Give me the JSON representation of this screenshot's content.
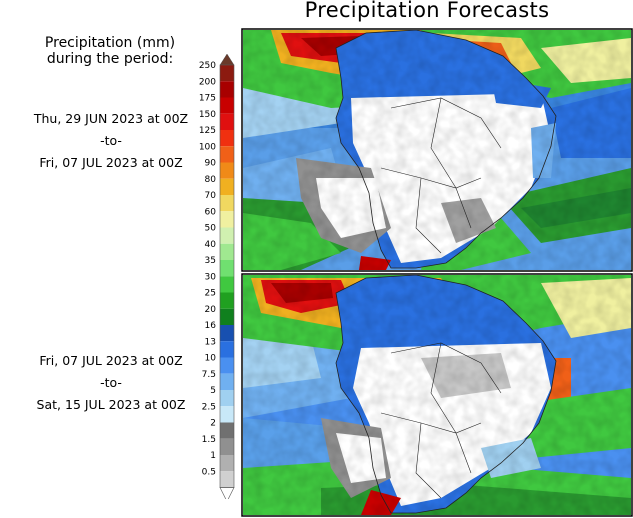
{
  "title": "Precipitation Forecasts",
  "legend": {
    "heading_line1": "Precipitation (mm)",
    "heading_line2": "during the period:",
    "ticks": [
      "250",
      "200",
      "175",
      "150",
      "125",
      "100",
      "90",
      "80",
      "70",
      "60",
      "50",
      "40",
      "35",
      "30",
      "25",
      "20",
      "16",
      "13",
      "10",
      "7.5",
      "5",
      "2.5",
      "2",
      "1.5",
      "1",
      "0.5"
    ],
    "colors": [
      "#6a3a2a",
      "#8c1a10",
      "#a80000",
      "#c80000",
      "#e01010",
      "#f03010",
      "#f06018",
      "#f08a18",
      "#f0b020",
      "#f0d860",
      "#f0f0a0",
      "#d0f0b0",
      "#a0e890",
      "#70e070",
      "#40c840",
      "#20a020",
      "#10801e",
      "#1850b0",
      "#2a70e0",
      "#4a90f0",
      "#70b0f0",
      "#a0d0f0",
      "#c8e8f8",
      "#707070",
      "#909090",
      "#b0b0b0",
      "#d0d0d0"
    ]
  },
  "periods": [
    {
      "start": "Thu, 29 JUN 2023 at 00Z",
      "separator": "-to-",
      "end": "Fri, 07 JUL 2023 at 00Z"
    },
    {
      "start": "Fri, 07 JUL 2023 at 00Z",
      "separator": "-to-",
      "end": "Sat, 15 JUL 2023 at 00Z"
    }
  ]
}
